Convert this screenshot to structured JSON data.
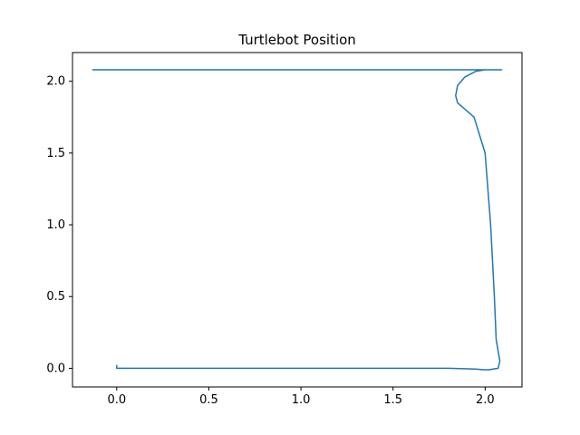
{
  "chart_data": {
    "type": "line",
    "title": "Turtlebot Position",
    "xlabel": "",
    "ylabel": "",
    "xlim": [
      -0.24,
      2.2
    ],
    "ylim": [
      -0.13,
      2.2
    ],
    "x_ticks": [
      0.0,
      0.5,
      1.0,
      1.5,
      2.0
    ],
    "x_tick_labels": [
      "0.0",
      "0.5",
      "1.0",
      "1.5",
      "2.0"
    ],
    "y_ticks": [
      0.0,
      0.5,
      1.0,
      1.5,
      2.0
    ],
    "y_tick_labels": [
      "0.0",
      "0.5",
      "1.0",
      "1.5",
      "2.0"
    ],
    "grid": false,
    "legend": "none",
    "series": [
      {
        "color": "#1f77b4",
        "x": [
          0.0,
          0.0,
          0.5,
          1.0,
          1.5,
          1.8,
          1.95,
          1.99,
          2.0,
          2.02,
          2.07,
          2.08,
          2.06,
          2.05,
          2.03,
          2.0,
          1.94,
          1.85,
          1.84,
          1.85,
          1.89,
          1.95,
          2.0,
          2.03,
          2.04,
          2.05,
          2.06,
          2.08,
          2.09,
          2.08,
          2.0,
          1.5,
          1.0,
          0.5,
          0.0,
          -0.01,
          -0.01,
          -0.01,
          -0.015,
          -0.015,
          -0.02,
          -0.02,
          -0.02,
          -0.02,
          -0.01,
          0.0,
          0.04,
          0.07,
          0.06,
          0.0,
          -0.07,
          -0.12,
          -0.13,
          -0.11,
          -0.06,
          0.0,
          0.1,
          0.5,
          1.0,
          1.5,
          1.7,
          1.8,
          1.84,
          1.85,
          1.84,
          1.86,
          1.91,
          1.96,
          2.01,
          2.02,
          2.03,
          2.03,
          2.04,
          2.05,
          2.06,
          2.08,
          2.09,
          2.09,
          2.08,
          2.06,
          2.0,
          1.99,
          2.09
        ],
        "y": [
          0.02,
          0.0,
          0.0,
          0.0,
          0.0,
          0.0,
          -0.005,
          -0.01,
          -0.01,
          -0.01,
          0.0,
          0.05,
          0.2,
          0.5,
          1.0,
          1.5,
          1.75,
          1.85,
          1.9,
          1.97,
          2.03,
          2.07,
          2.08,
          2.08,
          2.08,
          2.08,
          2.08,
          2.08,
          2.08,
          2.08,
          2.08,
          2.08,
          2.08,
          2.08,
          2.08,
          2.08,
          2.08,
          2.08,
          2.08,
          2.08,
          2.08,
          2.08,
          2.08,
          2.08,
          2.08,
          2.08,
          2.08,
          2.08,
          2.08,
          2.08,
          2.08,
          2.08,
          2.08,
          2.08,
          2.08,
          2.08,
          2.08,
          2.08,
          2.08,
          2.08,
          2.08,
          2.08,
          2.08,
          2.08,
          2.08,
          2.08,
          2.08,
          2.08,
          2.08,
          2.08,
          2.08,
          2.08,
          2.08,
          2.08,
          2.08,
          2.08,
          2.08,
          2.08,
          2.08,
          2.08,
          2.08,
          2.08,
          2.08
        ]
      }
    ]
  },
  "colors": {
    "line": "#1f77b4",
    "axes": "#000000",
    "background": "#ffffff"
  }
}
